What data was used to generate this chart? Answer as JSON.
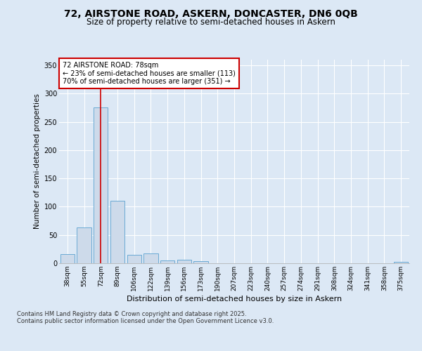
{
  "title_line1": "72, AIRSTONE ROAD, ASKERN, DONCASTER, DN6 0QB",
  "title_line2": "Size of property relative to semi-detached houses in Askern",
  "xlabel": "Distribution of semi-detached houses by size in Askern",
  "ylabel": "Number of semi-detached properties",
  "categories": [
    "38sqm",
    "55sqm",
    "72sqm",
    "89sqm",
    "106sqm",
    "122sqm",
    "139sqm",
    "156sqm",
    "173sqm",
    "190sqm",
    "207sqm",
    "223sqm",
    "240sqm",
    "257sqm",
    "274sqm",
    "291sqm",
    "308sqm",
    "324sqm",
    "341sqm",
    "358sqm",
    "375sqm"
  ],
  "values": [
    16,
    63,
    275,
    110,
    15,
    18,
    5,
    6,
    4,
    0,
    0,
    0,
    0,
    0,
    0,
    0,
    0,
    0,
    0,
    0,
    2
  ],
  "bar_color": "#cddaea",
  "bar_edge_color": "#6aaad4",
  "redline_x": 2,
  "ylim": [
    0,
    360
  ],
  "yticks": [
    0,
    50,
    100,
    150,
    200,
    250,
    300,
    350
  ],
  "annotation_text": "72 AIRSTONE ROAD: 78sqm\n← 23% of semi-detached houses are smaller (113)\n70% of semi-detached houses are larger (351) →",
  "annotation_box_color": "#ffffff",
  "annotation_border_color": "#cc0000",
  "footer_line1": "Contains HM Land Registry data © Crown copyright and database right 2025.",
  "footer_line2": "Contains public sector information licensed under the Open Government Licence v3.0.",
  "background_color": "#dce8f5",
  "plot_background": "#dce8f5",
  "grid_color": "#ffffff",
  "redline_color": "#cc0000"
}
